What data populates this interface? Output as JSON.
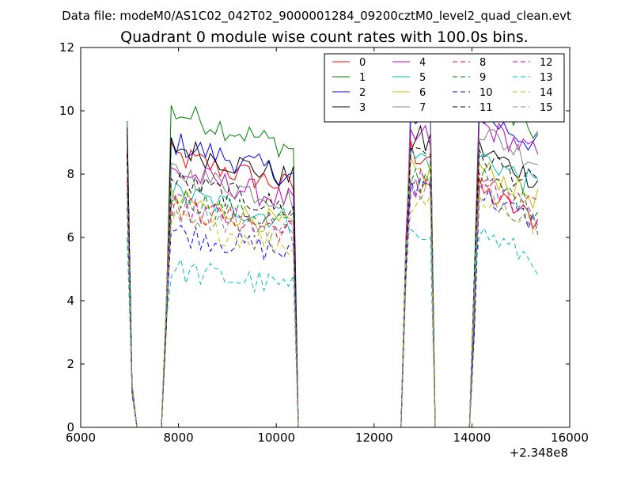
{
  "chart_data": {
    "type": "line",
    "suptitle": "Data file: modeM0/AS1C02_042T02_9000001284_09200cztM0_level2_quad_clean.evt",
    "title": "Quadrant 0 module wise count rates with 100.0s bins.",
    "xlabel": "",
    "ylabel": "",
    "xlim": [
      6000,
      16000
    ],
    "ylim": [
      0,
      12
    ],
    "x_offset_label": "+2.348e8",
    "xticks": [
      6000,
      8000,
      10000,
      12000,
      14000,
      16000
    ],
    "yticks": [
      0,
      2,
      4,
      6,
      8,
      10,
      12
    ],
    "xtick_labels": [
      "6000",
      "8000",
      "10000",
      "12000",
      "14000",
      "16000"
    ],
    "ytick_labels": [
      "0",
      "2",
      "4",
      "6",
      "8",
      "10",
      "12"
    ],
    "legend_position": "upper-right",
    "series": [
      {
        "name": "0",
        "color": "#ff0000",
        "dash": false,
        "levels": [
          8.6,
          8.6,
          8.7,
          6.5
        ]
      },
      {
        "name": "1",
        "color": "#008000",
        "dash": false,
        "levels": [
          9.8,
          10.0,
          10.3,
          9.3
        ]
      },
      {
        "name": "2",
        "color": "#0000ff",
        "dash": false,
        "levels": [
          9.2,
          9.0,
          9.6,
          8.9
        ]
      },
      {
        "name": "3",
        "color": "#000000",
        "dash": false,
        "levels": [
          9.4,
          8.9,
          9.0,
          7.8
        ]
      },
      {
        "name": "4",
        "color": "#bf00bf",
        "dash": false,
        "levels": [
          8.8,
          8.1,
          9.1,
          8.6
        ]
      },
      {
        "name": "5",
        "color": "#00bfbf",
        "dash": false,
        "levels": [
          8.2,
          7.4,
          8.5,
          7.6
        ]
      },
      {
        "name": "6",
        "color": "#bfbf00",
        "dash": false,
        "levels": [
          8.0,
          7.2,
          8.0,
          7.2
        ]
      },
      {
        "name": "7",
        "color": "#808080",
        "dash": false,
        "levels": [
          8.4,
          8.1,
          10.1,
          8.4
        ]
      },
      {
        "name": "8",
        "color": "#ff0000",
        "dash": true,
        "levels": [
          7.8,
          7.0,
          7.8,
          6.8
        ]
      },
      {
        "name": "9",
        "color": "#008000",
        "dash": true,
        "levels": [
          7.5,
          7.3,
          7.9,
          6.9
        ]
      },
      {
        "name": "10",
        "color": "#0000ff",
        "dash": true,
        "levels": [
          7.0,
          6.2,
          7.7,
          6.4
        ]
      },
      {
        "name": "11",
        "color": "#000000",
        "dash": true,
        "levels": [
          8.6,
          7.8,
          8.9,
          7.6
        ]
      },
      {
        "name": "12",
        "color": "#bf00bf",
        "dash": true,
        "levels": [
          7.6,
          7.0,
          7.6,
          6.7
        ]
      },
      {
        "name": "13",
        "color": "#00bfbf",
        "dash": true,
        "levels": [
          6.0,
          5.0,
          6.4,
          5.2
        ]
      },
      {
        "name": "14",
        "color": "#bfbf00",
        "dash": true,
        "levels": [
          7.2,
          6.5,
          7.3,
          6.3
        ]
      },
      {
        "name": "15",
        "color": "#808080",
        "dash": true,
        "levels": [
          7.4,
          6.9,
          7.5,
          6.5
        ]
      }
    ]
  }
}
